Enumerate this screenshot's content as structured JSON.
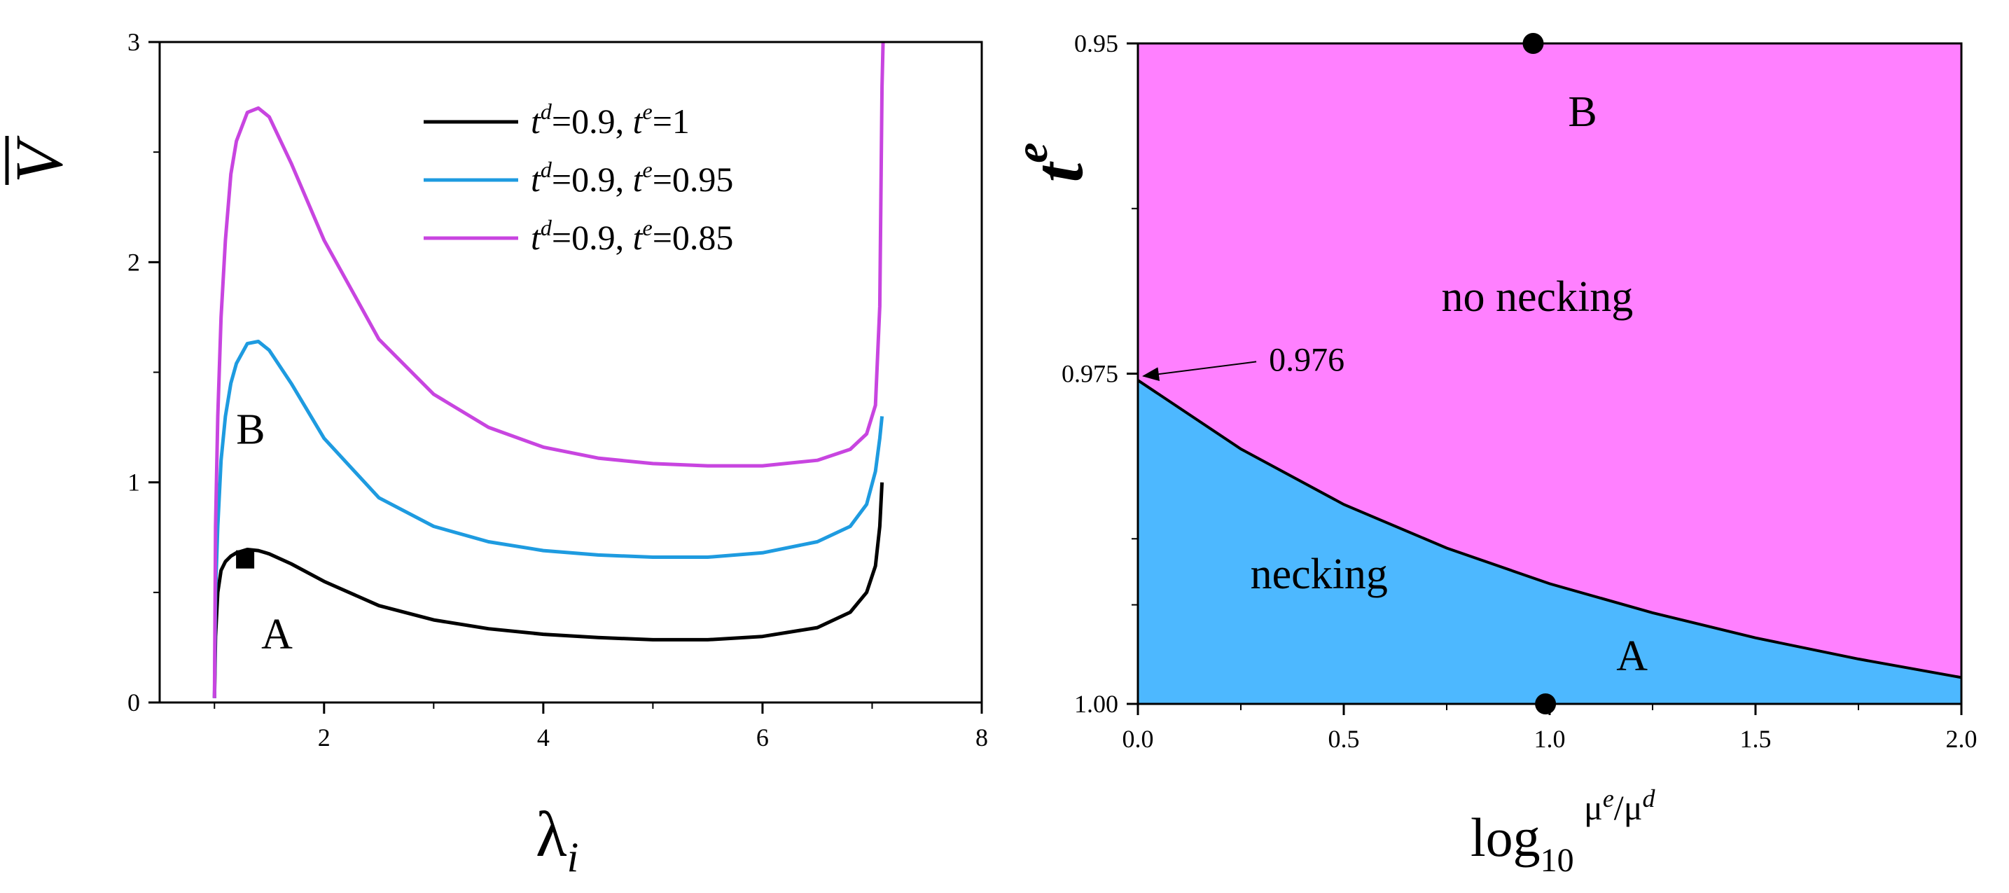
{
  "chart_data": [
    {
      "type": "line",
      "xlabel": "λ",
      "xlabel_sub": "i",
      "ylabel": "V",
      "xlim": [
        0.5,
        8
      ],
      "ylim": [
        0,
        3
      ],
      "xticks": [
        2,
        4,
        6,
        8
      ],
      "yticks": [
        0,
        1,
        2,
        3
      ],
      "xtick_labels": [
        "2",
        "4",
        "6",
        "8"
      ],
      "ytick_labels": [
        "0",
        "1",
        "2",
        "3"
      ],
      "legend_position": "top-right",
      "series": [
        {
          "name": "t^d=0.9, t^e=1",
          "legend_parts": {
            "a": "t",
            "sup_a": "d",
            "b": "=0.9, ",
            "c": "t",
            "sup_c": "e",
            "d": "=1"
          },
          "color": "#000000",
          "x": [
            1.0,
            1.01,
            1.03,
            1.06,
            1.1,
            1.15,
            1.2,
            1.3,
            1.4,
            1.5,
            1.7,
            2.0,
            2.5,
            3.0,
            3.5,
            4.0,
            4.5,
            5.0,
            5.5,
            6.0,
            6.5,
            6.8,
            6.95,
            7.03,
            7.07,
            7.09
          ],
          "y": [
            0.02,
            0.3,
            0.5,
            0.6,
            0.64,
            0.665,
            0.68,
            0.695,
            0.69,
            0.675,
            0.63,
            0.55,
            0.44,
            0.375,
            0.335,
            0.31,
            0.295,
            0.285,
            0.285,
            0.3,
            0.34,
            0.41,
            0.5,
            0.62,
            0.8,
            1.0
          ]
        },
        {
          "name": "t^d=0.9, t^e=0.95",
          "legend_parts": {
            "a": "t",
            "sup_a": "d",
            "b": "=0.9, ",
            "c": "t",
            "sup_c": "e",
            "d": "=0.95"
          },
          "color": "#1E9BE0",
          "x": [
            1.0,
            1.01,
            1.03,
            1.06,
            1.1,
            1.15,
            1.2,
            1.3,
            1.4,
            1.5,
            1.7,
            2.0,
            2.5,
            3.0,
            3.5,
            4.0,
            4.5,
            5.0,
            5.5,
            6.0,
            6.5,
            6.8,
            6.95,
            7.03,
            7.07,
            7.09
          ],
          "y": [
            0.02,
            0.5,
            0.8,
            1.1,
            1.3,
            1.45,
            1.54,
            1.63,
            1.64,
            1.6,
            1.45,
            1.2,
            0.93,
            0.8,
            0.73,
            0.69,
            0.67,
            0.66,
            0.66,
            0.68,
            0.73,
            0.8,
            0.9,
            1.05,
            1.2,
            1.3
          ]
        },
        {
          "name": "t^d=0.9, t^e=0.85",
          "legend_parts": {
            "a": "t",
            "sup_a": "d",
            "b": "=0.9, ",
            "c": "t",
            "sup_c": "e",
            "d": "=0.85"
          },
          "color": "#C845E0",
          "x": [
            1.0,
            1.01,
            1.03,
            1.06,
            1.1,
            1.15,
            1.2,
            1.3,
            1.4,
            1.5,
            1.7,
            2.0,
            2.5,
            3.0,
            3.5,
            4.0,
            4.5,
            5.0,
            5.5,
            6.0,
            6.5,
            6.8,
            6.95,
            7.03,
            7.07,
            7.08,
            7.09,
            7.1
          ],
          "y": [
            0.02,
            0.8,
            1.3,
            1.75,
            2.1,
            2.4,
            2.55,
            2.68,
            2.7,
            2.66,
            2.45,
            2.1,
            1.65,
            1.4,
            1.25,
            1.16,
            1.11,
            1.085,
            1.075,
            1.075,
            1.1,
            1.15,
            1.22,
            1.35,
            1.8,
            2.3,
            2.8,
            3.0
          ]
        }
      ],
      "marker": {
        "x": 1.28,
        "y": 0.65,
        "shape": "square"
      },
      "annotations": [
        {
          "text": "B",
          "x": 1.33,
          "y": 1.22
        },
        {
          "text": "A",
          "x": 1.57,
          "y": 0.29
        }
      ]
    },
    {
      "type": "area",
      "xlabel": "log",
      "xlabel_sub": "10",
      "xlabel_sup": "μ",
      "xlabel_sup_e": "e",
      "xlabel_sup_slash": "/μ",
      "xlabel_sup_d": "d",
      "ylabel": "t",
      "ylabel_sup": "e",
      "xlim": [
        0.0,
        2.0
      ],
      "ylim_top_to_bottom": [
        0.95,
        1.0
      ],
      "xticks": [
        0.0,
        0.5,
        1.0,
        1.5,
        2.0
      ],
      "xtick_labels": [
        "0.0",
        "0.5",
        "1.0",
        "1.5",
        "2.0"
      ],
      "yticks": [
        0.95,
        0.975,
        1.0
      ],
      "ytick_labels": [
        "0.95",
        "0.975",
        "1.00"
      ],
      "minor_yticks": [
        0.9625,
        0.9875,
        0.9925
      ],
      "boundary": {
        "x": [
          0.0,
          0.25,
          0.5,
          0.75,
          1.0,
          1.25,
          1.5,
          1.75,
          2.0
        ],
        "y": [
          0.9755,
          0.9807,
          0.9849,
          0.9882,
          0.9909,
          0.9931,
          0.995,
          0.9966,
          0.998
        ]
      },
      "regions": [
        {
          "name": "no necking",
          "color": "#FF80FF"
        },
        {
          "name": "necking",
          "color": "#4DB8FF"
        }
      ],
      "points": [
        {
          "x": 0.96,
          "y": 0.95
        },
        {
          "x": 0.99,
          "y": 1.0
        }
      ],
      "annotations": [
        {
          "text": "B",
          "x": 1.08,
          "y": 0.9555
        },
        {
          "text": "no necking",
          "x": 0.97,
          "y": 0.9695
        },
        {
          "text": "necking",
          "x": 0.44,
          "y": 0.9905
        },
        {
          "text": "A",
          "x": 1.2,
          "y": 0.9967
        },
        {
          "text": "0.976",
          "x": 0.41,
          "y": 0.9742
        }
      ]
    }
  ]
}
